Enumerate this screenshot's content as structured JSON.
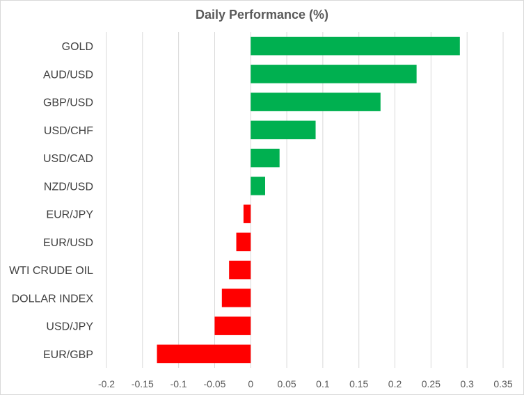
{
  "chart_data": {
    "type": "bar",
    "orientation": "horizontal",
    "title": "Daily Performance (%)",
    "xlabel": "",
    "ylabel": "",
    "categories": [
      "GOLD",
      "AUD/USD",
      "GBP/USD",
      "USD/CHF",
      "USD/CAD",
      "NZD/USD",
      "EUR/JPY",
      "EUR/USD",
      "WTI CRUDE OIL",
      "DOLLAR INDEX",
      "USD/JPY",
      "EUR/GBP"
    ],
    "values": [
      0.29,
      0.23,
      0.18,
      0.09,
      0.04,
      0.02,
      -0.01,
      -0.02,
      -0.03,
      -0.04,
      -0.05,
      -0.13
    ],
    "xlim": [
      -0.2,
      0.35
    ],
    "x_ticks": [
      "-0.2",
      "-0.15",
      "-0.1",
      "-0.05",
      "0",
      "0.05",
      "0.1",
      "0.15",
      "0.2",
      "0.25",
      "0.3",
      "0.35"
    ],
    "grid": "vertical",
    "legend": "none",
    "colors": {
      "positive": "#00b050",
      "negative": "#ff0000",
      "grid": "#d9d9d9",
      "text": "#595959"
    }
  }
}
